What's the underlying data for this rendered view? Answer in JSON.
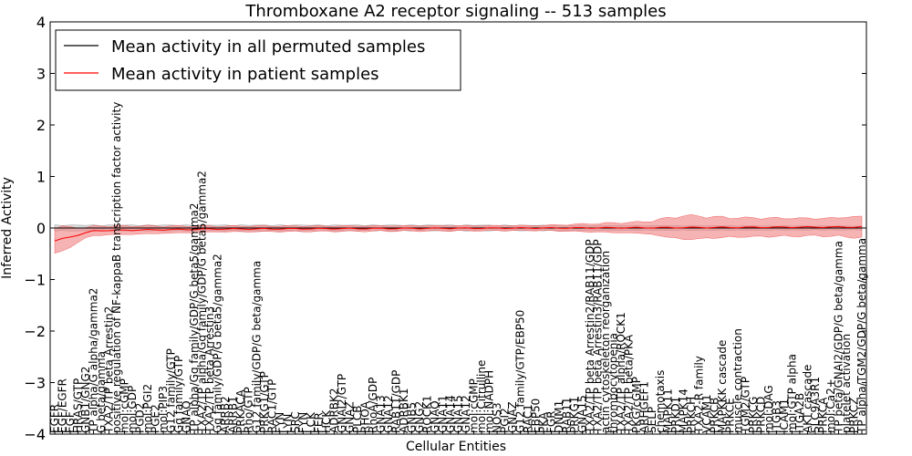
{
  "chart_data": {
    "type": "line",
    "title": "Thromboxane A2 receptor signaling -- 513 samples",
    "xlabel": "Cellular Entities",
    "ylabel": "Inferred Activity",
    "ylim": [
      -4,
      4
    ],
    "yticks": [
      "4",
      "3",
      "2",
      "1",
      "0",
      "−1",
      "−2",
      "−3",
      "−4"
    ],
    "legend_position": "top-left",
    "series": [
      {
        "name": "Mean activity in all permuted samples",
        "color": "#000000"
      },
      {
        "name": "Mean activity in patient samples",
        "color": "#ff0000"
      }
    ],
    "categories": [
      "EGFR",
      "EGF/EGFR",
      "EGF",
      "HRAS/GTP",
      "GNB1/GNG2",
      "TP alpha/G alpha/gamma2",
      "G beta/gamma",
      "TXA2/TP beta Arrestin2",
      "positive regulation of NF-kappaB transcription factor activity",
      "mol:cGMP",
      "mol:GDP",
      "PGD2",
      "mol:PGI2",
      "PGE2",
      "mol:PIP3",
      "G12 family/GTP",
      "Gq family/GTP",
      "GNAQ",
      "TP alpha/Gq family/GDP/G beta5/gamma2",
      "TXA2/TP alpha/Gq family/GDP/G beta5/gamma2",
      "TXA2/TP beta Arrestin3",
      "Gq family/GDP/G beta5/gamma2",
      "ARRB2",
      "ARRB1",
      "PRKACA",
      "Rho/GTP",
      "G12 family/GDP/G beta/gamma",
      "PRKG1/GTP",
      "RAC1/GTP",
      "FYN",
      "LYN",
      "SRC",
      "FYN",
      "LCK",
      "FER",
      "HCK",
      "ADRBK2",
      "GNAI2/GTP",
      "GNAZ",
      "PLCB",
      "RHOA",
      "RhoA/GDP",
      "GNA13",
      "GNA12",
      "RAB11/GDP",
      "ADRBK1",
      "GNB5",
      "GNG2",
      "ROCK1",
      "GNAQ",
      "GNA11",
      "GNA14",
      "GNA15",
      "GNA12",
      "mol:cGMP",
      "mol:Citrulline",
      "mol:NADPH",
      "NOS3",
      "PGI2",
      "GNAZ",
      "G12 family/GTP/EBP50",
      "RAC1",
      "EBP50",
      "PKA",
      "FGR",
      "DNM1",
      "RAB11",
      "PRKG1",
      "GNA15",
      "TXA2/TP beta Arrestin2/RAB11/GDP",
      "TXA2/TP beta Arrestin3/RAB11/GDP",
      "actin cytoskeleton reorganization",
      "thrombocytopenia",
      "TXA2/TP alpha/ROCK1",
      "TXA2/TP beta/PKA",
      "PKG/cGMP",
      "ARHGEF1",
      "SELP",
      "chemotaxis",
      "MAPK11",
      "PRKD1",
      "MAPK14",
      "PRKCH",
      "TXA2-R family",
      "VCAM1",
      "PRKCB",
      "MAPKKK cascade",
      "PRKCE",
      "muscle contraction",
      "TGM2/GTP",
      "PRKCG",
      "PRKCD",
      "mol:DAG",
      "ITGB3",
      "ICAM1",
      "mol:GTP alpha",
      "ITGA2B",
      "AKT cascade",
      "SLC9A3R1",
      "PRKCA",
      "mol:Ca2+",
      "TP beta/GNAI2/GDP/G beta/gamma",
      "platelet activation",
      "PRKCZ",
      "TP alpha/TGM2/GDP/G beta/gamma"
    ],
    "patient_mean_key_points": [
      [
        0,
        -0.25
      ],
      [
        5,
        -0.05
      ],
      [
        20,
        -0.02
      ],
      [
        60,
        0.0
      ],
      [
        100,
        0.02
      ]
    ],
    "patient_band_key_points": [
      [
        0,
        0.3
      ],
      [
        4,
        0.1
      ],
      [
        20,
        0.06
      ],
      [
        60,
        0.05
      ],
      [
        73,
        0.12
      ],
      [
        78,
        0.25
      ],
      [
        84,
        0.2
      ],
      [
        95,
        0.18
      ],
      [
        100,
        0.22
      ]
    ],
    "permuted_mean": 0.0,
    "permuted_band_key_points": [
      [
        0,
        0.06
      ],
      [
        50,
        0.06
      ],
      [
        100,
        0.04
      ]
    ]
  }
}
